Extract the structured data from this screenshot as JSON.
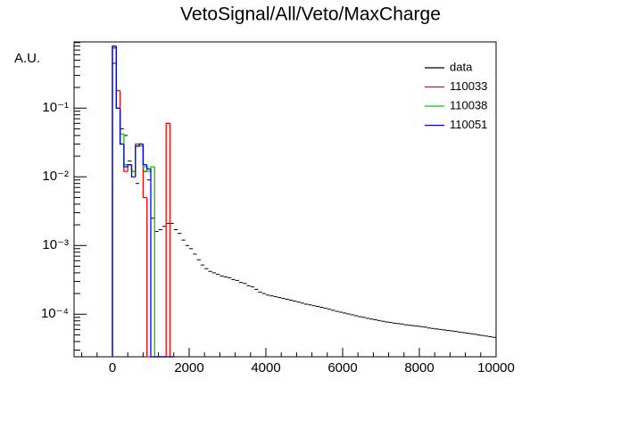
{
  "chart_data": {
    "type": "histogram",
    "title": "VetoSignal/All/Veto/MaxCharge",
    "y_label": "A.U.",
    "log_y": true,
    "legend": "upper right",
    "xlim": [
      -1000,
      10000
    ],
    "xticks": [
      0,
      2000,
      4000,
      6000,
      8000,
      10000
    ],
    "ylim": [
      2.4e-05,
      0.92
    ],
    "yticks": [
      {
        "value": 0.0001,
        "label": "10⁻⁴"
      },
      {
        "value": 0.001,
        "label": "10⁻³"
      },
      {
        "value": 0.01,
        "label": "10⁻²"
      },
      {
        "value": 0.1,
        "label": "10⁻¹"
      }
    ],
    "series": [
      {
        "name": "data",
        "color": "#000000",
        "style": "markers",
        "bins": [
          0,
          100,
          200,
          300,
          400,
          500,
          600,
          700,
          800,
          900,
          1000,
          1100,
          1200,
          1300,
          1400,
          1500,
          1600,
          1700,
          1800,
          1900,
          2000,
          2100,
          2200,
          2300,
          2400,
          2500,
          2600,
          2700,
          2800,
          2900,
          3000,
          3100,
          3200,
          3300,
          3400,
          3500,
          3600,
          3700,
          3800,
          3900,
          4000,
          4100,
          4200,
          4300,
          4400,
          4500,
          4600,
          4700,
          4800,
          4900,
          5000,
          5100,
          5200,
          5300,
          5400,
          5500,
          5600,
          5700,
          5800,
          5900,
          6000,
          6100,
          6200,
          6300,
          6400,
          6500,
          6600,
          6700,
          6800,
          6900,
          7000,
          7100,
          7200,
          7300,
          7400,
          7500,
          7600,
          7700,
          7800,
          7900,
          8000,
          8100,
          8200,
          8300,
          8400,
          8500,
          8600,
          8700,
          8800,
          8900,
          9000,
          9100,
          9200,
          9300,
          9400,
          9500,
          9600,
          9700,
          9800,
          9900,
          10000
        ],
        "values": [
          0.45,
          0.1,
          0.05,
          0.04,
          0.017,
          0.012,
          0.008,
          0.028,
          0.012,
          0.009,
          0.0025,
          0.0016,
          0.0017,
          0.0019,
          0.0021,
          0.0021,
          0.0017,
          0.0015,
          0.0012,
          0.001,
          0.0009,
          0.00075,
          0.00062,
          0.00052,
          0.00046,
          0.00042,
          0.0004,
          0.00038,
          0.00036,
          0.00035,
          0.00034,
          0.00032,
          0.00031,
          0.00029,
          0.00028,
          0.00026,
          0.00025,
          0.00023,
          0.00021,
          0.0002,
          0.00019,
          0.000185,
          0.00018,
          0.000175,
          0.00017,
          0.000165,
          0.00016,
          0.000155,
          0.00015,
          0.000145,
          0.00014,
          0.000137,
          0.000133,
          0.00013,
          0.000126,
          0.000122,
          0.000118,
          0.000114,
          0.00011,
          0.000107,
          0.000104,
          0.000101,
          9.8e-05,
          9.5e-05,
          9.2e-05,
          9e-05,
          8.7e-05,
          8.5e-05,
          8.3e-05,
          8.1e-05,
          7.9e-05,
          7.7e-05,
          7.6e-05,
          7.4e-05,
          7.3e-05,
          7.2e-05,
          7e-05,
          6.9e-05,
          6.8e-05,
          6.7e-05,
          6.6e-05,
          6.5e-05,
          6.3e-05,
          6.2e-05,
          6.1e-05,
          6e-05,
          5.9e-05,
          5.8e-05,
          5.7e-05,
          5.6e-05,
          5.5e-05,
          5.4e-05,
          5.3e-05,
          5.2e-05,
          5.1e-05,
          5e-05,
          4.9e-05,
          4.8e-05,
          4.7e-05,
          4.6e-05
        ]
      },
      {
        "name": "110033",
        "color": "#ff0000",
        "style": "step",
        "bins": [
          0,
          100,
          200,
          300,
          400,
          500,
          600,
          700,
          800,
          900,
          1000,
          1100,
          1200,
          1300,
          1400,
          1500,
          1600
        ],
        "values": [
          0.75,
          0.18,
          0.03,
          0.012,
          0.015,
          0.012,
          0.03,
          0.03,
          0.005,
          0,
          0,
          0,
          0,
          0,
          0.06,
          0
        ]
      },
      {
        "name": "110038",
        "color": "#00cc00",
        "style": "step",
        "bins": [
          0,
          100,
          200,
          300,
          400,
          500,
          600,
          700,
          800,
          900,
          1000,
          1100,
          1200,
          1300,
          1400,
          1500,
          1600
        ],
        "values": [
          0.8,
          0.1,
          0.042,
          0.015,
          0.015,
          0.012,
          0.028,
          0.028,
          0.014,
          0.012,
          0.014,
          0,
          0,
          0,
          0,
          0
        ]
      },
      {
        "name": "110051",
        "color": "#0000ff",
        "style": "step",
        "bins": [
          0,
          100,
          200,
          300,
          400,
          500,
          600,
          700,
          800,
          900,
          1000,
          1100,
          1200,
          1300,
          1400,
          1500,
          1600
        ],
        "values": [
          0.8,
          0.1,
          0.03,
          0.014,
          0.015,
          0.01,
          0.028,
          0.03,
          0.015,
          0.013,
          0,
          0,
          0,
          0,
          0,
          0
        ]
      }
    ]
  }
}
